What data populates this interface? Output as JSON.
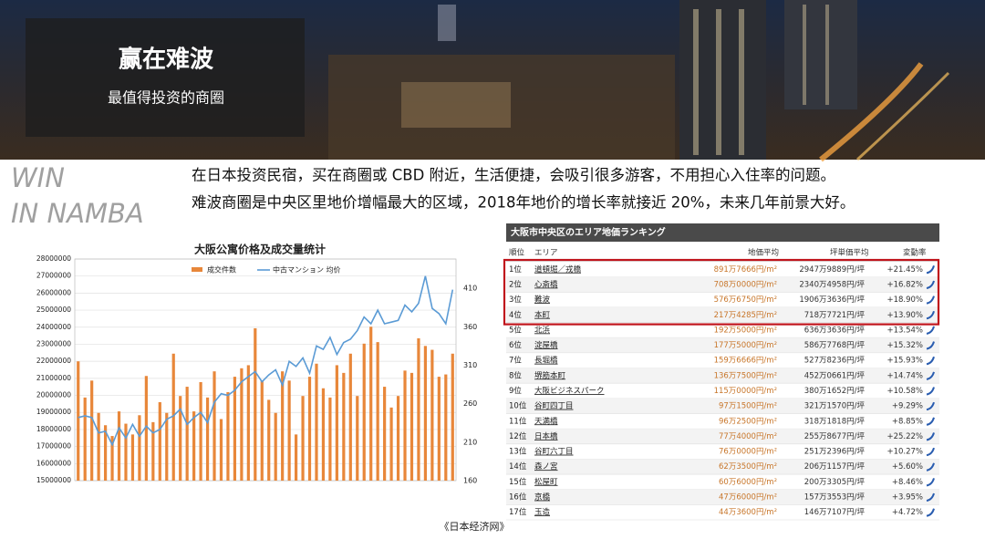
{
  "banner": {
    "title": "赢在难波",
    "subtitle": "最值得投资的商圈"
  },
  "tagline": [
    "WIN",
    "IN NAMBA"
  ],
  "paragraphs": [
    "在日本投资民宿，买在商圈或 CBD 附近，生活便捷，会吸引很多游客，不用担心入住率的问题。",
    "难波商圈是中央区里地价增幅最大的区域，2018年地价的增长率就接近 20%，未来几年前景大好。"
  ],
  "chart_data": {
    "type": "bar",
    "title": "大阪公寓价格及成交量统计",
    "grid": true,
    "ylim": [
      15000000,
      28000000
    ],
    "yticks": [
      15000000,
      16000000,
      17000000,
      18000000,
      19000000,
      20000000,
      21000000,
      22000000,
      23000000,
      24000000,
      25000000,
      26000000,
      27000000,
      28000000
    ],
    "y2lim": [
      160,
      448
    ],
    "y2ticks": [
      160,
      210,
      260,
      310,
      360,
      410
    ],
    "series": [
      {
        "name": "成交件数",
        "type": "bar",
        "axis": "y2",
        "color": "#e8873a",
        "values": [
          315,
          268,
          290,
          248,
          232,
          218,
          250,
          234,
          220,
          245,
          296,
          236,
          262,
          248,
          325,
          270,
          282,
          250,
          288,
          268,
          302,
          240,
          275,
          295,
          306,
          310,
          358,
          290,
          265,
          248,
          302,
          290,
          220,
          270,
          295,
          312,
          280,
          268,
          310,
          300,
          325,
          270,
          338,
          360,
          340,
          282,
          255,
          270,
          303,
          300,
          345,
          335,
          330,
          295,
          298,
          325
        ]
      },
      {
        "name": "中古マンション 均价",
        "type": "line",
        "color": "#5b9bd5",
        "values": [
          18700000,
          18800000,
          18700000,
          17800000,
          17900000,
          17100000,
          18100000,
          17500000,
          18300000,
          17600000,
          18200000,
          17800000,
          18000000,
          18600000,
          18800000,
          19200000,
          18300000,
          18700000,
          19000000,
          18400000,
          19600000,
          20100000,
          20000000,
          20300000,
          20800000,
          21100000,
          21400000,
          20800000,
          21200000,
          21500000,
          20600000,
          22000000,
          21700000,
          22200000,
          21300000,
          22900000,
          22700000,
          23400000,
          22400000,
          23100000,
          23300000,
          23800000,
          24600000,
          24200000,
          25000000,
          24200000,
          24300000,
          24400000,
          25300000,
          24900000,
          25400000,
          27000000,
          25100000,
          24800000,
          24200000,
          26200000
        ]
      }
    ]
  },
  "ranking": {
    "title": "大阪市中央区のエリア地価ランキング",
    "columns": [
      "順位",
      "エリア",
      "地価平均",
      "坪単価平均",
      "変動率"
    ],
    "rows": [
      [
        "1位",
        "道頓堀／戎橋",
        "891万7666円/m²",
        "2947万9889円/坪",
        "+21.45%"
      ],
      [
        "2位",
        "心斎橋",
        "708万0000円/m²",
        "2340万4958円/坪",
        "+16.82%"
      ],
      [
        "3位",
        "難波",
        "576万6750円/m²",
        "1906万3636円/坪",
        "+18.90%"
      ],
      [
        "4位",
        "本町",
        "217万4285円/m²",
        "718万7721円/坪",
        "+13.90%"
      ],
      [
        "5位",
        "北浜",
        "192万5000円/m²",
        "636万3636円/坪",
        "+13.54%"
      ],
      [
        "6位",
        "淀屋橋",
        "177万5000円/m²",
        "586万7768円/坪",
        "+15.32%"
      ],
      [
        "7位",
        "長堀橋",
        "159万6666円/m²",
        "527万8236円/坪",
        "+15.93%"
      ],
      [
        "8位",
        "堺筋本町",
        "136万7500円/m²",
        "452万0661円/坪",
        "+14.74%"
      ],
      [
        "9位",
        "大阪ビジネスパーク",
        "115万0000円/m²",
        "380万1652円/坪",
        "+10.58%"
      ],
      [
        "10位",
        "谷町四丁目",
        "97万1500円/m²",
        "321万1570円/坪",
        "+9.29%"
      ],
      [
        "11位",
        "天満橋",
        "96万2500円/m²",
        "318万1818円/坪",
        "+8.85%"
      ],
      [
        "12位",
        "日本橋",
        "77万4000円/m²",
        "255万8677円/坪",
        "+25.22%"
      ],
      [
        "13位",
        "谷町六丁目",
        "76万0000円/m²",
        "251万2396円/坪",
        "+10.27%"
      ],
      [
        "14位",
        "森ノ宮",
        "62万3500円/m²",
        "206万1157円/坪",
        "+5.60%"
      ],
      [
        "15位",
        "松屋町",
        "60万6000円/m²",
        "200万3305円/坪",
        "+8.46%"
      ],
      [
        "16位",
        "京橋",
        "47万6000円/m²",
        "157万3553円/坪",
        "+3.95%"
      ],
      [
        "17位",
        "玉造",
        "44万3600円/m²",
        "146万7107円/坪",
        "+4.72%"
      ]
    ]
  },
  "source": "《日本经济网》"
}
